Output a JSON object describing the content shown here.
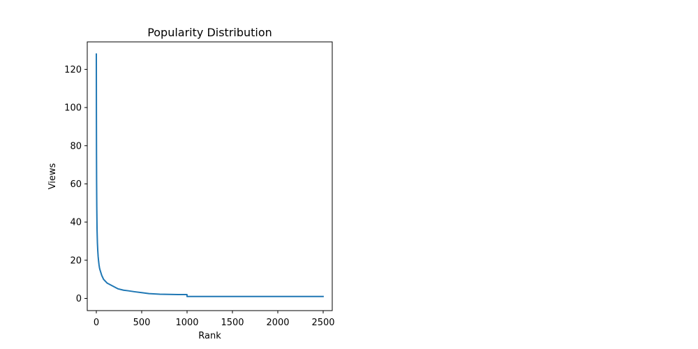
{
  "chart_data": {
    "type": "line",
    "title": "Popularity Distribution",
    "xlabel": "Rank",
    "ylabel": "Views",
    "xlim": [
      -100,
      2600
    ],
    "ylim": [
      -6.4,
      134.4
    ],
    "xticks": [
      0,
      500,
      1000,
      1500,
      2000,
      2500
    ],
    "yticks": [
      0,
      20,
      40,
      60,
      80,
      100,
      120
    ],
    "grid": false,
    "line_color": "#1f77b4",
    "series": [
      {
        "x": [
          0,
          1,
          2,
          3,
          5,
          8,
          12,
          16,
          20,
          25,
          30,
          35,
          40,
          50,
          60,
          70,
          80,
          90,
          100,
          120,
          140,
          160,
          180,
          200,
          240,
          300,
          350,
          420,
          500,
          580,
          700,
          800,
          900,
          999,
          1000,
          1200,
          1500,
          1800,
          2000,
          2200,
          2499
        ],
        "y": [
          128,
          95,
          75,
          62,
          48,
          36,
          29,
          25,
          22,
          19.5,
          17.5,
          16,
          15,
          13.5,
          12,
          11,
          10,
          9.5,
          9,
          8,
          7.5,
          7,
          6.5,
          6,
          5,
          4.3,
          4,
          3.5,
          3,
          2.5,
          2.2,
          2.1,
          2,
          2,
          1,
          1,
          1,
          1,
          1,
          1,
          1
        ]
      }
    ]
  }
}
